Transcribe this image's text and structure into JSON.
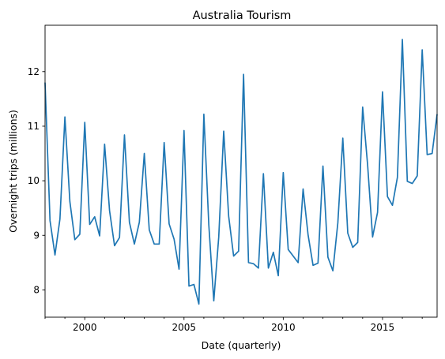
{
  "chart_data": {
    "type": "line",
    "title": "Australia Tourism",
    "xlabel": "Date (quarterly)",
    "ylabel": "Overnight trips  (millions)",
    "x_start": "1998-Q1",
    "x_step": "quarter",
    "xlim": [
      1998.0,
      2017.75
    ],
    "ylim": [
      7.5,
      12.85
    ],
    "x_ticks": [
      2000,
      2005,
      2010,
      2015
    ],
    "x_tick_labels": [
      "2000",
      "2005",
      "2010",
      "2015"
    ],
    "y_ticks": [
      8,
      9,
      10,
      11,
      12
    ],
    "y_tick_labels": [
      "8",
      "9",
      "10",
      "11",
      "12"
    ],
    "grid": false,
    "legend": "none",
    "series": [
      {
        "color": "#1f77b4",
        "values": [
          11.8,
          9.27,
          8.64,
          9.3,
          11.17,
          9.62,
          8.92,
          9.02,
          11.07,
          9.2,
          9.34,
          8.99,
          10.67,
          9.45,
          8.81,
          8.96,
          10.84,
          9.24,
          8.84,
          9.24,
          10.5,
          9.1,
          8.84,
          8.84,
          10.7,
          9.21,
          8.93,
          8.38,
          10.92,
          8.07,
          8.1,
          7.74,
          11.22,
          9.19,
          7.8,
          8.97,
          10.91,
          9.35,
          8.62,
          8.71,
          11.95,
          8.5,
          8.48,
          8.4,
          10.13,
          8.4,
          8.69,
          8.26,
          10.15,
          8.74,
          8.62,
          8.5,
          9.85,
          9.01,
          8.45,
          8.49,
          10.27,
          8.6,
          8.35,
          9.23,
          10.78,
          9.04,
          8.78,
          8.87,
          11.35,
          10.29,
          8.97,
          9.42,
          11.63,
          9.71,
          9.55,
          10.06,
          12.59,
          9.99,
          9.95,
          10.09,
          12.4,
          10.48,
          10.5,
          11.22
        ]
      }
    ]
  }
}
